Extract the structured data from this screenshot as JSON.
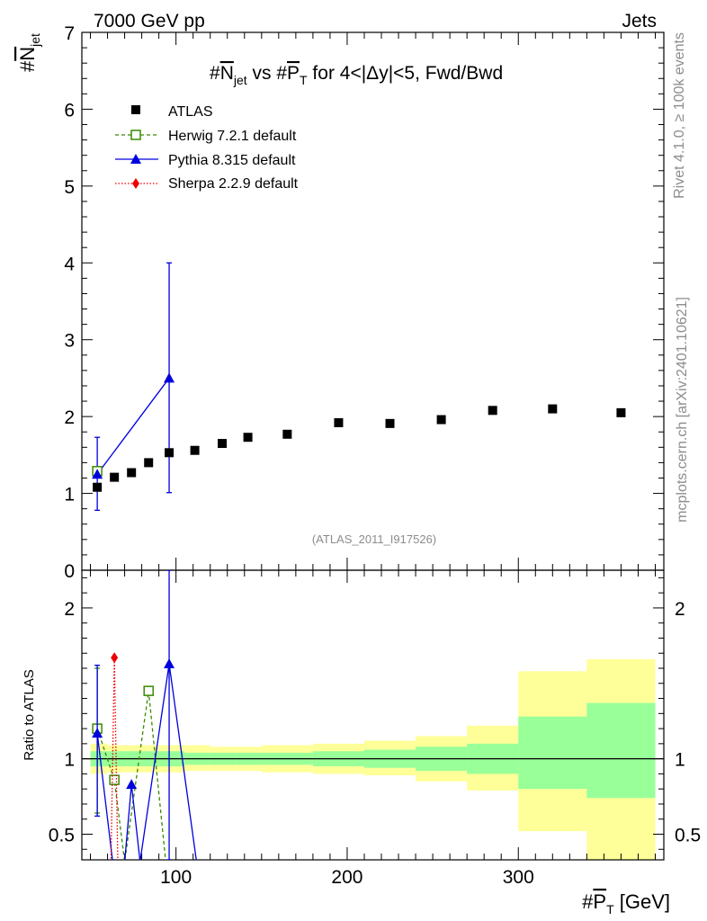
{
  "header": {
    "left": "7000 GeV pp",
    "right": "Jets"
  },
  "side_text": {
    "rivet": "Rivet 4.1.0, ≥ 100k events",
    "mcplots": "mcplots.cern.ch [arXiv:2401.10621]"
  },
  "colors": {
    "atlas": "#000000",
    "herwig": "#3a8a00",
    "pythia": "#0000dd",
    "sherpa": "#ee0000",
    "band_inner": "#99ff99",
    "band_outer": "#ffff99",
    "grey_text": "#8c8c8c"
  },
  "chart_data": [
    {
      "type": "scatter",
      "panel": "main",
      "title_parts": {
        "hash1": "#",
        "nbar": "N",
        "nsub": "jet",
        "mid": " vs #",
        "pbar": "P",
        "psub": "T",
        "tail": " for 4<|Δy|<5, Fwd/Bwd"
      },
      "ylabel_parts": {
        "hash": "#",
        "n": "N",
        "sub": "jet"
      },
      "ylim": [
        0,
        7
      ],
      "yticks": [
        0,
        1,
        2,
        3,
        4,
        5,
        6,
        7
      ],
      "xlim": [
        45,
        385
      ],
      "watermark": "(ATLAS_2011_I917526)",
      "legend": [
        {
          "key": "atlas",
          "label": "ATLAS"
        },
        {
          "key": "herwig",
          "label": "Herwig 7.2.1 default"
        },
        {
          "key": "pythia",
          "label": "Pythia 8.315 default"
        },
        {
          "key": "sherpa",
          "label": "Sherpa 2.2.9 default"
        }
      ],
      "bins": [
        {
          "lo": 50,
          "hi": 60
        },
        {
          "lo": 60,
          "hi": 70
        },
        {
          "lo": 70,
          "hi": 80
        },
        {
          "lo": 80,
          "hi": 90
        },
        {
          "lo": 90,
          "hi": 105
        },
        {
          "lo": 105,
          "hi": 120
        },
        {
          "lo": 120,
          "hi": 135
        },
        {
          "lo": 135,
          "hi": 150
        },
        {
          "lo": 150,
          "hi": 180
        },
        {
          "lo": 180,
          "hi": 210
        },
        {
          "lo": 210,
          "hi": 240
        },
        {
          "lo": 240,
          "hi": 270
        },
        {
          "lo": 270,
          "hi": 300
        },
        {
          "lo": 300,
          "hi": 340
        },
        {
          "lo": 340,
          "hi": 380
        }
      ],
      "series": [
        {
          "name": "ATLAS",
          "x": [
            54,
            64,
            74,
            84,
            96,
            111,
            127,
            142,
            165,
            195,
            225,
            255,
            285,
            320,
            360
          ],
          "y": [
            1.08,
            1.21,
            1.27,
            1.4,
            1.53,
            1.56,
            1.65,
            1.73,
            1.77,
            1.92,
            1.91,
            1.96,
            2.08,
            2.1,
            2.05
          ]
        },
        {
          "name": "Herwig 7.2.1 default",
          "x": [
            54
          ],
          "y": [
            1.29
          ]
        },
        {
          "name": "Pythia 8.315 default",
          "x": [
            54,
            96
          ],
          "y": [
            1.25,
            2.5
          ],
          "err_lo": [
            0.47,
            1.49
          ],
          "err_hi": [
            0.48,
            1.5
          ]
        }
      ]
    },
    {
      "type": "line",
      "panel": "ratio",
      "ylabel": "Ratio to ATLAS",
      "ylim": [
        0.33,
        2.25
      ],
      "yticks": [
        0.5,
        1,
        2
      ],
      "ytick_labels": [
        "0.5",
        "1",
        "2"
      ],
      "xlim": [
        45,
        385
      ],
      "xticks": [
        100,
        200,
        300
      ],
      "xtick_labels": [
        "100",
        "200",
        "300"
      ],
      "xlabel_parts": {
        "hash": "#",
        "p": "P",
        "sub": "T",
        "unit": " [GeV]"
      },
      "bands": {
        "bins": [
          [
            50,
            60
          ],
          [
            60,
            70
          ],
          [
            70,
            80
          ],
          [
            80,
            90
          ],
          [
            90,
            105
          ],
          [
            105,
            120
          ],
          [
            120,
            135
          ],
          [
            135,
            150
          ],
          [
            150,
            180
          ],
          [
            180,
            210
          ],
          [
            210,
            240
          ],
          [
            240,
            270
          ],
          [
            270,
            300
          ],
          [
            300,
            340
          ],
          [
            340,
            380
          ]
        ],
        "inner_lo": [
          0.95,
          0.95,
          0.95,
          0.95,
          0.95,
          0.96,
          0.96,
          0.96,
          0.96,
          0.95,
          0.94,
          0.92,
          0.9,
          0.8,
          0.74
        ],
        "inner_hi": [
          1.05,
          1.05,
          1.05,
          1.05,
          1.05,
          1.04,
          1.04,
          1.04,
          1.04,
          1.05,
          1.06,
          1.08,
          1.1,
          1.28,
          1.37
        ],
        "outer_lo": [
          0.9,
          0.91,
          0.91,
          0.91,
          0.91,
          0.92,
          0.92,
          0.92,
          0.91,
          0.9,
          0.89,
          0.85,
          0.79,
          0.52,
          0.33
        ],
        "outer_hi": [
          1.1,
          1.09,
          1.09,
          1.09,
          1.09,
          1.09,
          1.08,
          1.08,
          1.09,
          1.1,
          1.12,
          1.15,
          1.22,
          1.58,
          1.66
        ]
      },
      "series": [
        {
          "name": "Herwig 7.2.1 default",
          "x": [
            54,
            64,
            70,
            84,
            94
          ],
          "y": [
            1.2,
            0.86,
            0.33,
            1.45,
            0.33
          ],
          "markers": [
            true,
            true,
            false,
            true,
            false
          ],
          "err_lo": [
            0.56,
            0,
            0,
            0,
            0
          ],
          "err_hi": [
            0.4,
            0,
            0,
            0,
            0
          ]
        },
        {
          "name": "Pythia 8.315 default",
          "x": [
            54,
            63,
            70,
            74,
            79,
            96,
            112
          ],
          "y": [
            1.17,
            0.33,
            0.33,
            0.83,
            0.33,
            1.63,
            0.33
          ],
          "markers": [
            true,
            false,
            false,
            true,
            false,
            true,
            false
          ],
          "err_lo": [
            0.55,
            0,
            0,
            0,
            0,
            1.3,
            0
          ],
          "err_hi": [
            0.45,
            0,
            0,
            0,
            0,
            0.65,
            0
          ]
        },
        {
          "name": "Sherpa 2.2.9 default",
          "x": [
            62,
            64,
            66
          ],
          "y": [
            0.33,
            1.67,
            0.33
          ],
          "markers": [
            false,
            true,
            false
          ]
        }
      ]
    }
  ]
}
